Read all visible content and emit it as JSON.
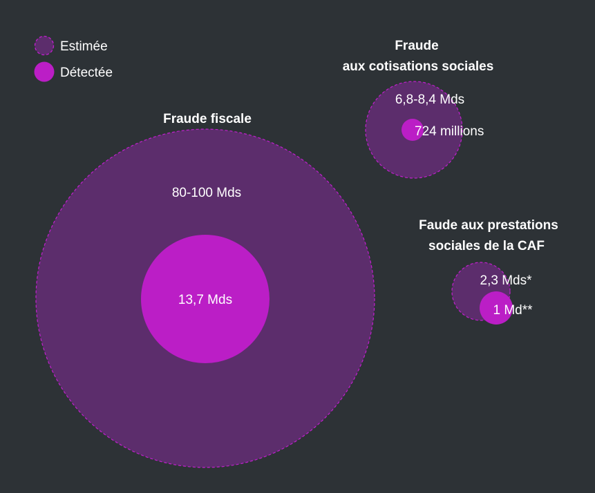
{
  "chart_data": {
    "type": "bubble",
    "legend": {
      "placement": "top-left",
      "items": [
        {
          "label": "Estimée",
          "color": "#5c2d6c",
          "border": "#c21fcf",
          "style": "dashed"
        },
        {
          "label": "Détectée",
          "color": "#bb1ec6"
        }
      ]
    },
    "groups": [
      {
        "title": [
          "Fraude fiscale"
        ],
        "estimated_label": "80-100 Mds",
        "estimated_value_range_bn": [
          80,
          100
        ],
        "detected_label": "13,7 Mds",
        "detected_value_bn": 13.7
      },
      {
        "title": [
          "Fraude",
          "aux cotisations sociales"
        ],
        "estimated_label": "6,8-8,4 Mds",
        "estimated_value_range_bn": [
          6.8,
          8.4
        ],
        "detected_label": "724 millions",
        "detected_value_bn": 0.724
      },
      {
        "title": [
          "Faude aux prestations",
          "sociales de la CAF"
        ],
        "estimated_label": "2,3 Mds*",
        "estimated_value_range_bn": [
          2.3,
          2.3
        ],
        "detected_label": "1 Md**",
        "detected_value_bn": 1
      }
    ]
  }
}
